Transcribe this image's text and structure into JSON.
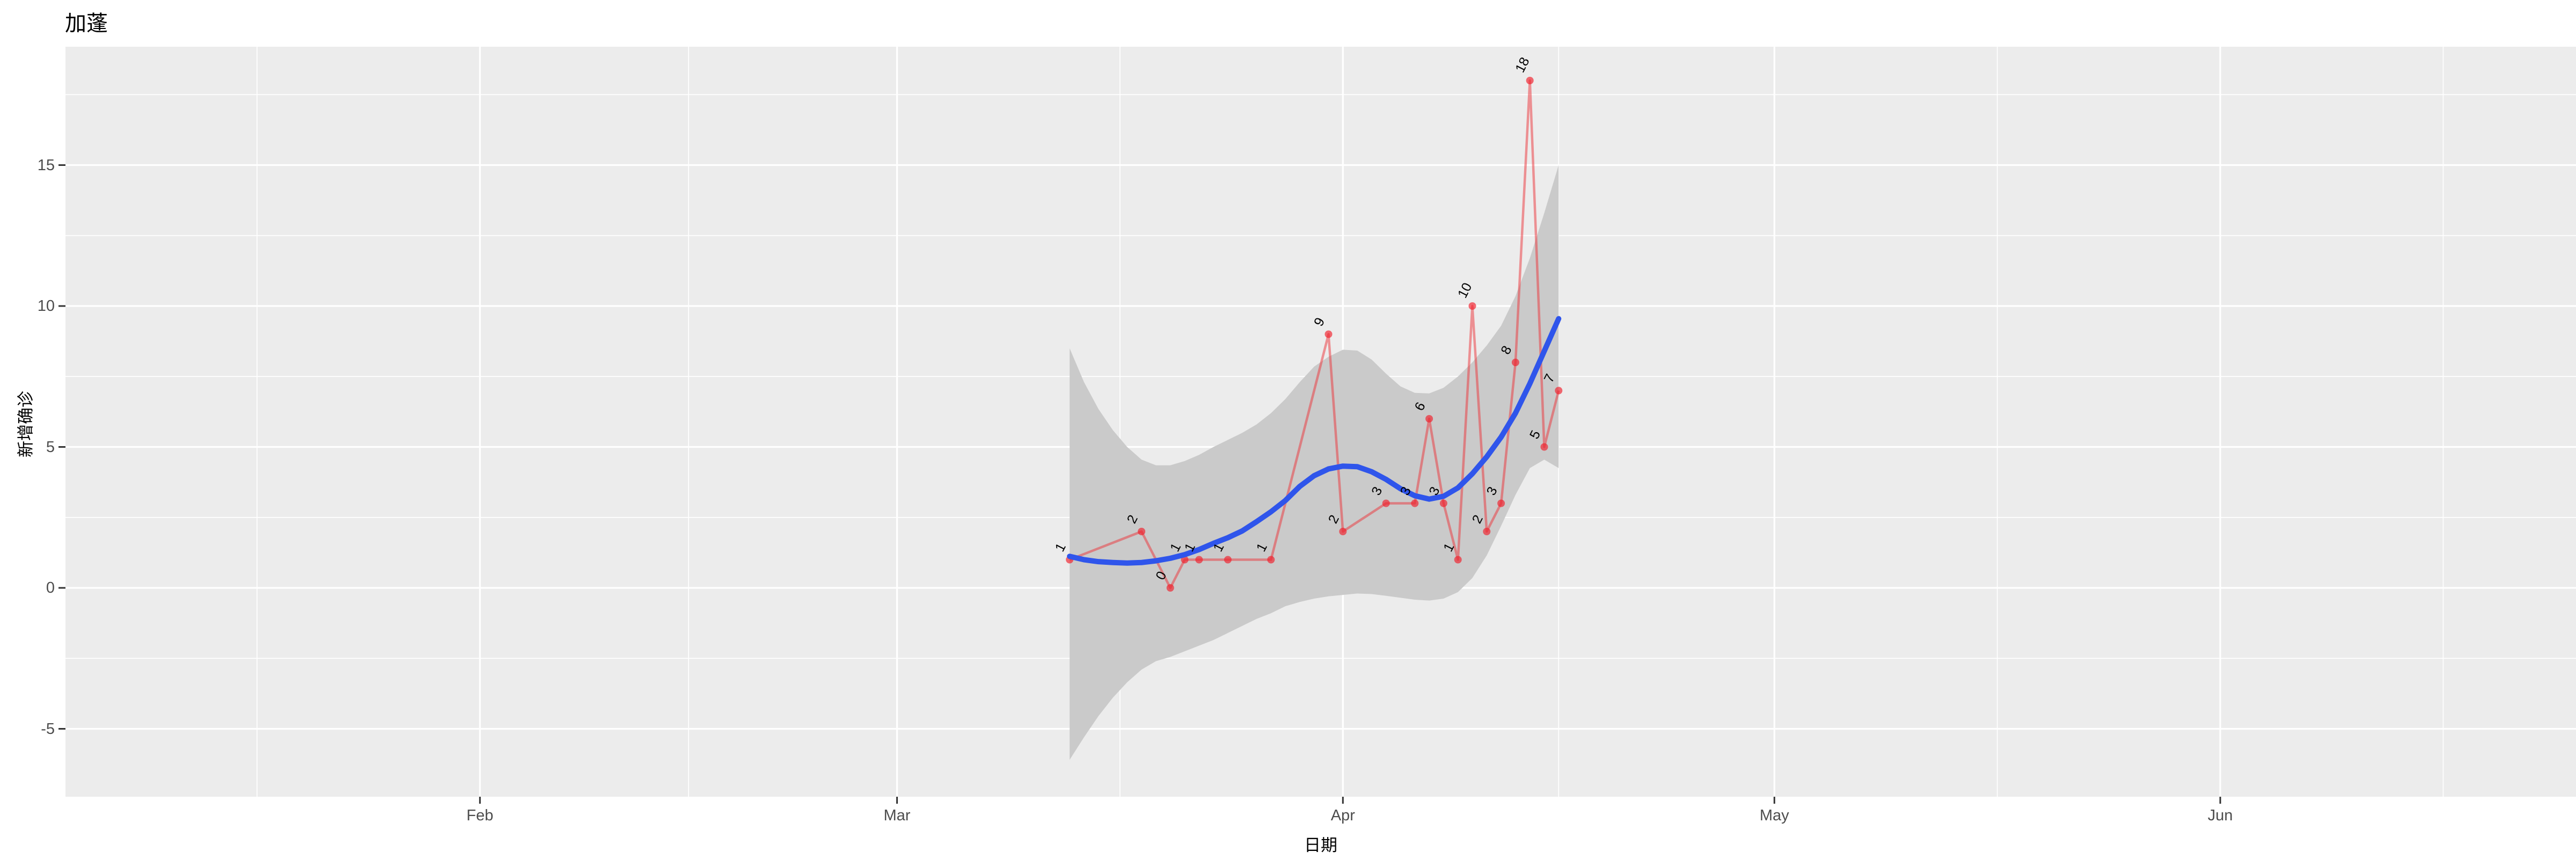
{
  "title": "加蓬",
  "axes": {
    "x": {
      "title": "日期",
      "tick_labels": [
        "Feb",
        "Mar",
        "Apr",
        "May",
        "Jun"
      ]
    },
    "y": {
      "title": "新增确诊",
      "tick_labels": [
        "-5",
        "0",
        "5",
        "10",
        "15"
      ]
    }
  },
  "colors": {
    "panel_bg": "#ececec",
    "grid": "#ffffff",
    "band": "#cacaca",
    "red_line": "rgba(235,50,55,0.5)",
    "red_point": "rgba(240,30,42,0.66)",
    "blue_line": "#2f55eb",
    "tick_mark": "#333333",
    "tick_text": "#4d4d4d",
    "label_text": "#000000"
  },
  "chart_data": {
    "type": "line",
    "title": "加蓬",
    "xlabel": "日期",
    "ylabel": "新增确诊",
    "x_tick_labels": [
      "Feb",
      "Mar",
      "Apr",
      "May",
      "Jun"
    ],
    "x_tick_doy_2020": [
      32,
      61,
      92,
      122,
      153
    ],
    "x_minor_doy_2020": [
      16.5,
      46.5,
      76.5,
      107,
      137.5,
      168.5
    ],
    "y_ticks": [
      -5,
      0,
      5,
      10,
      15
    ],
    "y_minor_ticks": [
      -2.5,
      2.5,
      7.5,
      12.5,
      17.5
    ],
    "x_domain_rendered": [
      "2020-01-03",
      "2020-06-26"
    ],
    "ylim_rendered": [
      -7.4,
      19.2
    ],
    "grid": "white major+minor on gray panel",
    "legend": "none",
    "series": [
      {
        "name": "daily_new_confirmed",
        "type": "line+scatter+text",
        "color": "red",
        "label_angle_deg": 63,
        "points": [
          {
            "date": "2020-03-13",
            "value": 1,
            "label": "1"
          },
          {
            "date": "2020-03-18",
            "value": 2,
            "label": "2"
          },
          {
            "date": "2020-03-20",
            "value": 0,
            "label": "0"
          },
          {
            "date": "2020-03-21",
            "value": 1,
            "label": "1"
          },
          {
            "date": "2020-03-22",
            "value": 1,
            "label": "1"
          },
          {
            "date": "2020-03-24",
            "value": 1,
            "label": "1"
          },
          {
            "date": "2020-03-27",
            "value": 1,
            "label": "1"
          },
          {
            "date": "2020-03-31",
            "value": 9,
            "label": "9"
          },
          {
            "date": "2020-04-01",
            "value": 2,
            "label": "2"
          },
          {
            "date": "2020-04-04",
            "value": 3,
            "label": "3"
          },
          {
            "date": "2020-04-06",
            "value": 3,
            "label": "3"
          },
          {
            "date": "2020-04-07",
            "value": 6,
            "label": "6"
          },
          {
            "date": "2020-04-08",
            "value": 3,
            "label": "3"
          },
          {
            "date": "2020-04-09",
            "value": 1,
            "label": "1"
          },
          {
            "date": "2020-04-10",
            "value": 10,
            "label": "10"
          },
          {
            "date": "2020-04-11",
            "value": 2,
            "label": "2"
          },
          {
            "date": "2020-04-12",
            "value": 3,
            "label": "3"
          },
          {
            "date": "2020-04-13",
            "value": 8,
            "label": "8"
          },
          {
            "date": "2020-04-14",
            "value": 18,
            "label": "18"
          },
          {
            "date": "2020-04-15",
            "value": 5,
            "label": "5"
          },
          {
            "date": "2020-04-16",
            "value": 7,
            "label": "7"
          }
        ]
      },
      {
        "name": "loess_smooth",
        "type": "line",
        "color": "blue",
        "start_date": "2020-03-13",
        "daily_values": [
          1.12,
          1.0,
          0.93,
          0.9,
          0.88,
          0.9,
          0.96,
          1.05,
          1.18,
          1.36,
          1.58,
          1.78,
          2.02,
          2.35,
          2.7,
          3.1,
          3.6,
          3.98,
          4.22,
          4.32,
          4.3,
          4.12,
          3.85,
          3.52,
          3.27,
          3.15,
          3.25,
          3.55,
          4.05,
          4.65,
          5.35,
          6.2,
          7.25,
          8.4,
          9.55
        ]
      },
      {
        "name": "confidence_band",
        "type": "area",
        "color": "gray",
        "start_date": "2020-03-13",
        "daily_upper": [
          8.5,
          7.3,
          6.35,
          5.6,
          5.0,
          4.55,
          4.35,
          4.35,
          4.5,
          4.72,
          5.0,
          5.25,
          5.5,
          5.8,
          6.2,
          6.7,
          7.3,
          7.85,
          8.2,
          8.45,
          8.42,
          8.1,
          7.6,
          7.15,
          6.92,
          6.9,
          7.1,
          7.5,
          8.0,
          8.6,
          9.3,
          10.35,
          11.7,
          13.3,
          15.0
        ],
        "daily_lower": [
          -6.1,
          -5.3,
          -4.55,
          -3.9,
          -3.35,
          -2.9,
          -2.6,
          -2.45,
          -2.25,
          -2.05,
          -1.85,
          -1.6,
          -1.35,
          -1.1,
          -0.9,
          -0.65,
          -0.5,
          -0.38,
          -0.3,
          -0.25,
          -0.2,
          -0.22,
          -0.28,
          -0.35,
          -0.42,
          -0.45,
          -0.38,
          -0.15,
          0.35,
          1.15,
          2.2,
          3.3,
          4.25,
          4.55,
          4.25
        ]
      }
    ]
  }
}
